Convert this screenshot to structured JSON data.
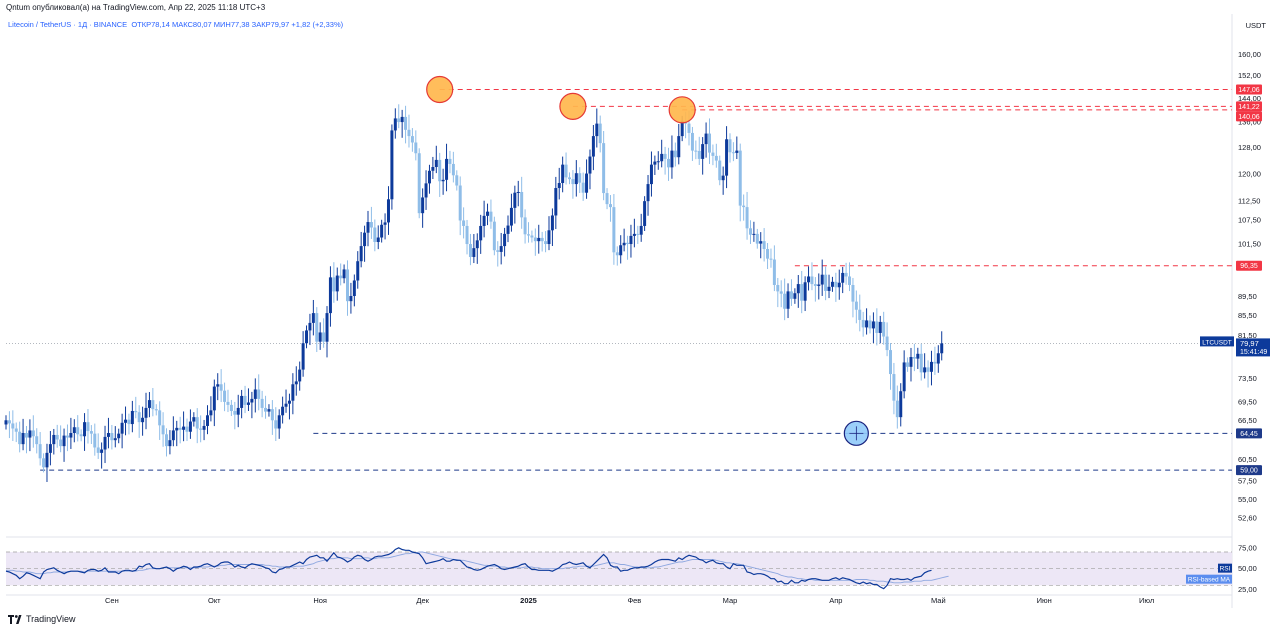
{
  "header": {
    "published_line": "Qntum опубликовал(а) на TradingView.com, Апр 22, 2025 11:18 UTC+3",
    "symbol_line": "Litecoin / TetherUS · 1Д · BINANCE",
    "ohlc": "ОТКР78,14  МАКС80,07  МИН77,38  ЗАКР79,97  +1,82 (+2,33%)",
    "quote_unit": "USDT"
  },
  "footer": {
    "brand": "TradingView"
  },
  "colors": {
    "up": "#0d3a9b",
    "down": "#8fbde8",
    "resistance": "#f23645",
    "support": "#1e3a8a",
    "price_label": "#0d3a9b",
    "highlight_fill": "#ffb74d",
    "highlight_ring": "#e53935",
    "low_fill": "#90caf9",
    "rsi_band": "#ede7f6",
    "rsi_line": "#0d3a9b",
    "rsi_ma": "#8fa8e0"
  },
  "chart_data": {
    "type": "candlestick",
    "y_scale": "log",
    "ylim": [
      50.5,
      168
    ],
    "yticks": [
      "160,00",
      "152,00",
      "144,00",
      "136,00",
      "128,00",
      "120,00",
      "112,50",
      "107,50",
      "101,50",
      "89,50",
      "85,50",
      "81,50",
      "73,50",
      "69,50",
      "66,50",
      "60,50",
      "57,50",
      "55,00",
      "52,60"
    ],
    "x_ticks": [
      "Сен",
      "Окт",
      "Ноя",
      "Дек",
      "2025",
      "Фев",
      "Мар",
      "Апр",
      "Май",
      "Июн",
      "Июл"
    ],
    "x_tick_dates": [
      "2024-09-01",
      "2024-10-01",
      "2024-11-01",
      "2024-12-01",
      "2025-01-01",
      "2025-02-01",
      "2025-03-01",
      "2025-04-01",
      "2025-05-01",
      "2025-06-01",
      "2025-07-01"
    ],
    "x_range": [
      "2024-08-01",
      "2025-07-26"
    ],
    "start_date": "2024-08-01",
    "closes": [
      66.5,
      66.0,
      65.2,
      64.7,
      62.8,
      64.5,
      63.8,
      64.9,
      64.0,
      62.8,
      60.7,
      59.4,
      61.5,
      62.8,
      64.2,
      63.5,
      62.5,
      64.1,
      63.8,
      64.5,
      65.4,
      64.3,
      64.0,
      66.2,
      64.8,
      64.4,
      62.3,
      61.5,
      62.0,
      63.9,
      64.5,
      63.4,
      63.7,
      64.4,
      66.1,
      66.6,
      65.9,
      68.0,
      67.8,
      66.2,
      66.9,
      68.5,
      69.8,
      68.3,
      68.1,
      65.7,
      64.3,
      62.5,
      63.4,
      64.9,
      65.3,
      65.0,
      65.5,
      64.7,
      66.3,
      67.0,
      65.2,
      65.0,
      65.6,
      67.3,
      68.1,
      72.1,
      72.5,
      71.4,
      69.5,
      69.0,
      68.0,
      67.4,
      68.5,
      70.5,
      69.0,
      69.4,
      70.0,
      71.6,
      70.0,
      68.5,
      67.9,
      68.3,
      66.5,
      65.2,
      67.3,
      68.7,
      69.2,
      69.7,
      72.5,
      73.0,
      75.1,
      80.0,
      82.5,
      84.0,
      86.0,
      80.3,
      82.1,
      80.3,
      86.0,
      93.7,
      90.6,
      94.1,
      93.5,
      95.5,
      88.5,
      89.6,
      93.0,
      97.4,
      101.0,
      104.3,
      107.0,
      105.6,
      102.0,
      103.1,
      106.3,
      106.9,
      113.0,
      133.3,
      137.2,
      136.0,
      137.7,
      133.5,
      131.5,
      129.5,
      126.2,
      109.3,
      113.5,
      117.4,
      121.0,
      122.1,
      124.2,
      118.0,
      118.4,
      124.5,
      123.0,
      119.7,
      116.8,
      107.4,
      106.0,
      101.5,
      98.4,
      100.5,
      102.4,
      106.0,
      108.6,
      109.7,
      107.1,
      100.0,
      99.6,
      101.0,
      104.0,
      106.1,
      110.7,
      114.8,
      115.0,
      108.2,
      103.9,
      103.6,
      103.1,
      102.2,
      103.0,
      102.2,
      101.5,
      104.9,
      108.7,
      116.1,
      117.5,
      122.8,
      119.1,
      118.6,
      117.2,
      120.3,
      117.6,
      114.8,
      120.2,
      125.2,
      131.5,
      135.5,
      129.3,
      114.7,
      111.7,
      110.9,
      99.5,
      98.8,
      101.2,
      101.8,
      101.5,
      103.5,
      104.0,
      103.8,
      106.0,
      112.5,
      117.2,
      122.8,
      123.7,
      123.8,
      126.0,
      124.5,
      122.0,
      127.0,
      125.0,
      131.5,
      136.4,
      135.5,
      132.5,
      127.0,
      126.9,
      124.5,
      129.0,
      132.3,
      126.4,
      125.4,
      124.0,
      118.3,
      119.6,
      130.5,
      126.5,
      126.3,
      127.0,
      111.3,
      110.9,
      105.4,
      103.8,
      104.0,
      101.6,
      102.2,
      100.3,
      98.0,
      97.8,
      92.0,
      90.6,
      90.1,
      86.9,
      90.6,
      89.0,
      90.2,
      92.2,
      88.6,
      92.6,
      93.9,
      92.2,
      91.8,
      92.1,
      94.3,
      90.7,
      91.6,
      92.7,
      91.5,
      92.5,
      94.7,
      93.9,
      92.0,
      88.4,
      86.7,
      84.6,
      83.1,
      84.5,
      82.9,
      84.3,
      82.0,
      84.2,
      81.3,
      78.7,
      74.3,
      69.7,
      67.0,
      71.3,
      76.4,
      75.6,
      77.4,
      77.1,
      78.0,
      74.6,
      75.5,
      74.7,
      76.5,
      76.2,
      78.1,
      79.97
    ],
    "levels": [
      {
        "value": 147.06,
        "label": "147,06",
        "style": "resistance"
      },
      {
        "value": 141.22,
        "label": "141,22",
        "style": "resistance"
      },
      {
        "value": 140.06,
        "label": "140,06",
        "style": "resistance"
      },
      {
        "value": 96.35,
        "label": "96,35",
        "style": "resistance"
      },
      {
        "value": 64.45,
        "label": "64,45",
        "style": "support"
      },
      {
        "value": 59.0,
        "label": "59,00",
        "style": "support"
      }
    ],
    "current_price": {
      "symbol": "LTCUSDT",
      "value": "79,97",
      "countdown": "15:41:49",
      "raw": 79.97
    },
    "highlights": [
      {
        "kind": "top",
        "date": "2024-12-06",
        "price": 147.06
      },
      {
        "kind": "top",
        "date": "2025-01-14",
        "price": 141.22
      },
      {
        "kind": "top",
        "date": "2025-02-15",
        "price": 140.06
      },
      {
        "kind": "low",
        "date": "2025-04-07",
        "price": 64.45
      }
    ],
    "rsi": {
      "name": "RSI",
      "ma_name": "RSI-based MA",
      "ylim": [
        22,
        82
      ],
      "band": [
        30,
        70
      ],
      "yticks": [
        "75,00",
        "50,00",
        "25,00"
      ],
      "values": [
        47,
        46,
        44,
        42,
        38,
        41,
        45,
        44,
        42,
        40,
        38,
        46,
        49,
        50,
        51,
        48,
        46,
        44,
        46,
        47,
        47,
        47,
        46,
        45,
        48,
        49,
        49,
        47,
        48,
        51,
        46,
        46,
        46,
        44,
        47,
        48,
        48,
        47,
        48,
        53,
        52,
        55,
        56,
        51,
        50,
        50,
        51,
        52,
        50,
        47,
        50,
        51,
        53,
        52,
        49,
        52,
        52,
        53,
        55,
        56,
        54,
        52,
        54,
        57,
        58,
        58,
        56,
        52,
        54,
        52,
        51,
        54,
        56,
        55,
        54,
        53,
        51,
        50,
        46,
        45,
        49,
        50,
        52,
        52,
        54,
        56,
        58,
        56,
        61,
        64,
        65,
        66,
        63,
        63,
        59,
        64,
        69,
        64,
        63,
        61,
        58,
        60,
        64,
        66,
        65,
        61,
        59,
        61,
        64,
        65,
        65,
        66,
        67,
        69,
        73,
        75,
        73,
        72,
        72,
        70,
        69,
        68,
        63,
        56,
        57,
        58,
        59,
        60,
        62,
        59,
        59,
        61,
        60,
        60,
        56,
        52,
        51,
        49,
        48,
        49,
        51,
        53,
        54,
        55,
        53,
        50,
        49,
        50,
        51,
        52,
        53,
        55,
        56,
        52,
        49,
        49,
        48,
        48,
        48,
        48,
        47,
        49,
        51,
        55,
        56,
        58,
        56,
        55,
        56,
        57,
        53,
        51,
        55,
        59,
        63,
        67,
        63,
        54,
        52,
        52,
        47,
        48,
        48,
        50,
        51,
        51,
        52,
        52,
        53,
        55,
        58,
        60,
        61,
        61,
        61,
        60,
        59,
        63,
        61,
        64,
        66,
        65,
        64,
        61,
        60,
        57,
        59,
        60,
        57,
        56,
        56,
        52,
        50,
        56,
        54,
        54,
        54,
        46,
        45,
        43,
        44,
        44,
        43,
        41,
        38,
        38,
        34,
        35,
        32,
        32,
        36,
        33,
        33,
        36,
        35,
        37,
        38,
        38,
        37,
        36,
        36,
        36,
        38,
        39,
        37,
        39,
        38,
        37,
        35,
        33,
        32,
        34,
        32,
        33,
        31,
        31,
        28,
        26,
        30,
        38,
        37,
        38,
        37,
        37,
        38,
        36,
        39,
        40,
        41,
        45,
        47,
        48
      ],
      "ma": [
        48,
        48,
        48,
        47,
        47,
        46,
        46,
        46,
        45,
        44,
        44,
        44,
        45,
        45,
        46,
        46,
        46,
        46,
        46,
        47,
        47,
        47,
        47,
        46,
        47,
        47,
        47,
        47,
        47,
        47,
        47,
        47,
        47,
        47,
        47,
        47,
        47,
        47,
        47,
        48,
        48,
        49,
        50,
        50,
        50,
        50,
        51,
        51,
        51,
        51,
        51,
        51,
        51,
        51,
        51,
        51,
        51,
        52,
        52,
        52,
        53,
        53,
        53,
        54,
        54,
        55,
        55,
        55,
        55,
        55,
        55,
        55,
        55,
        55,
        55,
        55,
        54,
        54,
        53,
        53,
        52,
        52,
        52,
        52,
        52,
        53,
        53,
        53,
        54,
        55,
        56,
        58,
        59,
        60,
        61,
        62,
        62,
        63,
        63,
        63,
        63,
        62,
        62,
        62,
        62,
        63,
        63,
        62,
        62,
        63,
        63,
        63,
        63,
        64,
        65,
        66,
        67,
        68,
        68,
        69,
        69,
        70,
        70,
        69,
        68,
        67,
        66,
        65,
        64,
        63,
        62,
        61,
        61,
        60,
        60,
        59,
        58,
        57,
        56,
        55,
        54,
        54,
        53,
        53,
        53,
        52,
        52,
        51,
        51,
        51,
        51,
        51,
        52,
        52,
        52,
        51,
        51,
        50,
        50,
        50,
        50,
        50,
        50,
        50,
        51,
        51,
        52,
        52,
        53,
        53,
        53,
        53,
        53,
        54,
        55,
        56,
        57,
        57,
        57,
        56,
        55,
        55,
        54,
        53,
        52,
        52,
        51,
        51,
        51,
        51,
        52,
        52,
        53,
        54,
        55,
        56,
        57,
        58,
        58,
        59,
        60,
        61,
        61,
        61,
        61,
        61,
        61,
        61,
        60,
        59,
        58,
        57,
        57,
        56,
        56,
        55,
        54,
        53,
        52,
        51,
        50,
        49,
        48,
        47,
        46,
        45,
        44,
        42,
        41,
        40,
        40,
        39,
        38,
        38,
        37,
        37,
        37,
        36,
        36,
        36,
        36,
        36,
        36,
        36,
        36,
        36,
        36,
        36,
        36,
        37,
        37,
        37,
        37,
        36,
        36,
        35,
        35,
        35,
        34,
        34,
        33,
        33,
        33,
        34,
        34,
        34,
        35,
        35,
        35,
        36,
        36,
        36,
        37,
        38,
        39,
        40,
        41
      ]
    }
  }
}
